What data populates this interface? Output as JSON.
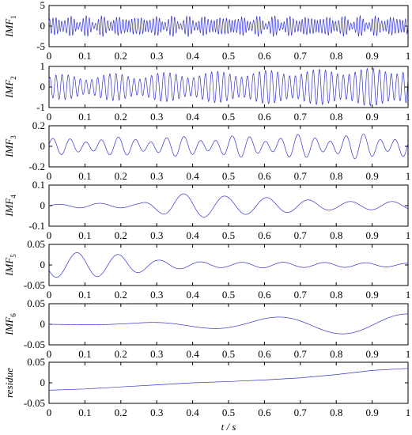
{
  "chart_data": [
    {
      "type": "line",
      "ylabel": "IMF",
      "ylabel_sub": "1",
      "ylim": [
        -5,
        5
      ],
      "yticks": [
        "5",
        "0",
        "-5"
      ],
      "x_range": [
        0,
        1
      ],
      "xticks": [
        "0",
        "0.1",
        "0.2",
        "0.3",
        "0.4",
        "0.5",
        "0.6",
        "0.7",
        "0.8",
        "0.9",
        "1"
      ],
      "series": [
        {
          "color": "#3333cc",
          "signal": {
            "components": [
              {
                "freq_hz": 118,
                "amp_start": 1.6,
                "amp_end": 1.6,
                "phase": 0.0
              },
              {
                "freq_hz": 97,
                "amp_start": 0.6,
                "amp_end": 0.6,
                "phase": 1.1
              },
              {
                "freq_hz": 143,
                "amp_start": 0.4,
                "amp_end": 0.4,
                "phase": 2.3
              }
            ],
            "offset_start": 0,
            "offset_end": 0
          }
        }
      ]
    },
    {
      "type": "line",
      "ylabel": "IMF",
      "ylabel_sub": "2",
      "ylim": [
        -1,
        1
      ],
      "yticks": [
        "1",
        "0",
        "-1"
      ],
      "x_range": [
        0,
        1
      ],
      "xticks": [
        "0",
        "0.1",
        "0.2",
        "0.3",
        "0.4",
        "0.5",
        "0.6",
        "0.7",
        "0.8",
        "0.9",
        "1"
      ],
      "series": [
        {
          "color": "#3333cc",
          "signal": {
            "components": [
              {
                "freq_hz": 60,
                "amp_start": 0.45,
                "amp_end": 0.8,
                "phase": 0.4
              },
              {
                "freq_hz": 53,
                "amp_start": 0.15,
                "amp_end": 0.15,
                "phase": 2.0
              }
            ],
            "offset_start": 0,
            "offset_end": 0
          }
        }
      ]
    },
    {
      "type": "line",
      "ylabel": "IMF",
      "ylabel_sub": "3",
      "ylim": [
        -0.2,
        0.2
      ],
      "yticks": [
        "0.2",
        "0",
        "-0.2"
      ],
      "x_range": [
        0,
        1
      ],
      "xticks": [
        "0",
        "0.1",
        "0.2",
        "0.3",
        "0.4",
        "0.5",
        "0.6",
        "0.7",
        "0.8",
        "0.9",
        "1"
      ],
      "series": [
        {
          "color": "#3333cc",
          "signal": {
            "components": [
              {
                "freq_hz": 22,
                "amp_start": 0.06,
                "amp_end": 0.09,
                "phase": 0.0
              },
              {
                "freq_hz": 16,
                "amp_start": 0.02,
                "amp_end": 0.04,
                "phase": 1.0
              }
            ],
            "offset_start": 0,
            "offset_end": 0
          }
        }
      ]
    },
    {
      "type": "line",
      "ylabel": "IMF",
      "ylabel_sub": "4",
      "ylim": [
        -0.1,
        0.1
      ],
      "yticks": [
        "0.1",
        "0",
        "-0.1"
      ],
      "x_range": [
        0,
        1
      ],
      "xticks": [
        "0",
        "0.1",
        "0.2",
        "0.3",
        "0.4",
        "0.5",
        "0.6",
        "0.7",
        "0.8",
        "0.9",
        "1"
      ],
      "series": [
        {
          "color": "#3333cc",
          "signal": {
            "envelope": [
              [
                0,
                0.004
              ],
              [
                0.1,
                0.012
              ],
              [
                0.25,
                0.01
              ],
              [
                0.35,
                0.055
              ],
              [
                0.4,
                0.06
              ],
              [
                0.5,
                0.045
              ],
              [
                0.6,
                0.04
              ],
              [
                0.7,
                0.03
              ],
              [
                0.8,
                0.02
              ],
              [
                0.9,
                0.02
              ],
              [
                1,
                0.02
              ]
            ],
            "freq_hz": 8.6,
            "phase": 0.2,
            "offset_start": 0,
            "offset_end": 0
          }
        }
      ]
    },
    {
      "type": "line",
      "ylabel": "IMF",
      "ylabel_sub": "5",
      "ylim": [
        -0.05,
        0.05
      ],
      "yticks": [
        "0.05",
        "0",
        "-0.05"
      ],
      "x_range": [
        0,
        1
      ],
      "xticks": [
        "0",
        "0.1",
        "0.2",
        "0.3",
        "0.4",
        "0.5",
        "0.6",
        "0.7",
        "0.8",
        "0.9",
        "1"
      ],
      "series": [
        {
          "color": "#3333cc",
          "signal": {
            "envelope": [
              [
                0,
                0.03
              ],
              [
                0.1,
                0.03
              ],
              [
                0.2,
                0.025
              ],
              [
                0.3,
                0.012
              ],
              [
                0.4,
                0.008
              ],
              [
                0.5,
                0.006
              ],
              [
                0.6,
                0.007
              ],
              [
                0.7,
                0.006
              ],
              [
                0.8,
                0.006
              ],
              [
                0.9,
                0.005
              ],
              [
                1,
                0.004
              ]
            ],
            "freq_hz": 8.7,
            "phase": 3.6,
            "offset_start": 0,
            "offset_end": 0
          }
        }
      ]
    },
    {
      "type": "line",
      "ylabel": "IMF",
      "ylabel_sub": "6",
      "ylim": [
        -0.05,
        0.05
      ],
      "yticks": [
        "0.05",
        "0",
        "-0.05"
      ],
      "x_range": [
        0,
        1
      ],
      "xticks": [
        "0",
        "0.1",
        "0.2",
        "0.3",
        "0.4",
        "0.5",
        "0.6",
        "0.7",
        "0.8",
        "0.9",
        "1"
      ],
      "series": [
        {
          "color": "#3333cc",
          "signal": {
            "envelope": [
              [
                0,
                0.0005
              ],
              [
                0.2,
                0.002
              ],
              [
                0.3,
                0.005
              ],
              [
                0.45,
                0.01
              ],
              [
                0.6,
                0.016
              ],
              [
                0.75,
                0.022
              ],
              [
                0.9,
                0.025
              ],
              [
                1,
                0.025
              ]
            ],
            "freq_hz": 2.75,
            "phase": 3.2,
            "offset_start": 0,
            "offset_end": 0
          }
        }
      ]
    },
    {
      "type": "line",
      "ylabel": "residue",
      "ylabel_sub": "",
      "ylim": [
        -0.05,
        0.05
      ],
      "yticks": [
        "0.05",
        "0",
        "-0.05"
      ],
      "x_range": [
        0,
        1
      ],
      "xticks": [
        "0",
        "0.1",
        "0.2",
        "0.3",
        "0.4",
        "0.5",
        "0.6",
        "0.7",
        "0.8",
        "0.9",
        "1"
      ],
      "xlabel": "t / s",
      "series": [
        {
          "color": "#3333cc",
          "points": [
            [
              0,
              -0.018
            ],
            [
              0.1,
              -0.015
            ],
            [
              0.2,
              -0.01
            ],
            [
              0.3,
              -0.005
            ],
            [
              0.4,
              0.0
            ],
            [
              0.5,
              0.003
            ],
            [
              0.6,
              0.007
            ],
            [
              0.7,
              0.012
            ],
            [
              0.8,
              0.02
            ],
            [
              0.9,
              0.03
            ],
            [
              1,
              0.035
            ]
          ]
        }
      ]
    }
  ]
}
